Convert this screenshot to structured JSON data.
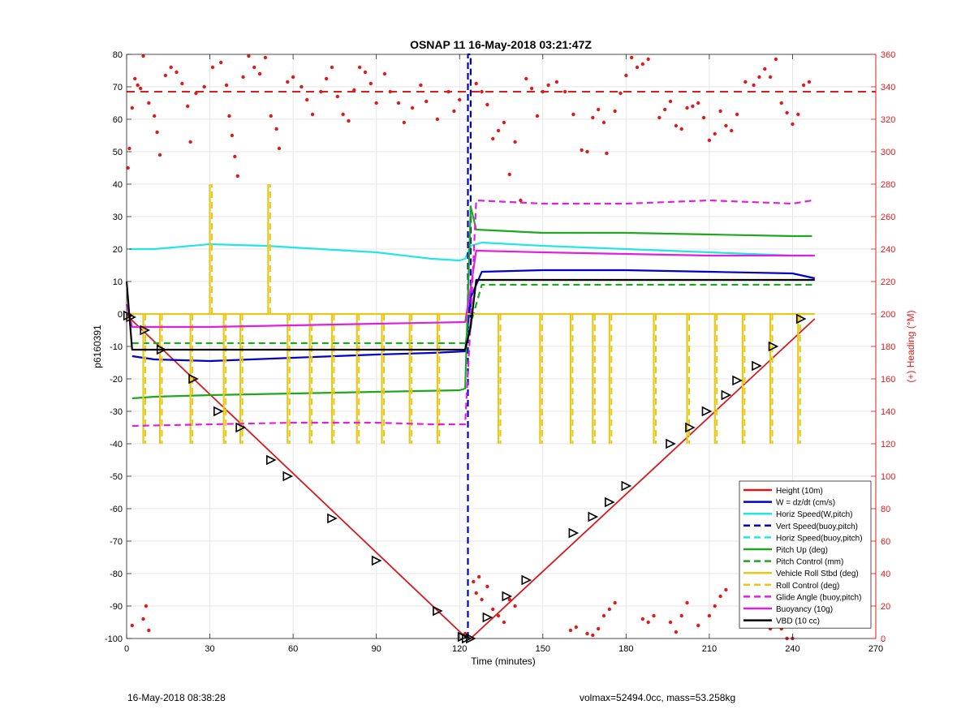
{
  "chart_data": {
    "type": "line",
    "title": "OSNAP 11 16-May-2018 03:21:47Z",
    "xlabel": "Time (minutes)",
    "ylabel": "p6160391",
    "y2label": "(+) Heading (°M)",
    "xlim": [
      0,
      270
    ],
    "ylim": [
      -100,
      80
    ],
    "y2lim": [
      0,
      360
    ],
    "xticks": [
      0,
      30,
      60,
      90,
      120,
      150,
      180,
      210,
      240,
      270
    ],
    "yticks": [
      -100,
      -90,
      -80,
      -70,
      -60,
      -50,
      -40,
      -30,
      -20,
      -10,
      0,
      10,
      20,
      30,
      40,
      50,
      60,
      70,
      80
    ],
    "y2ticks": [
      0,
      20,
      40,
      60,
      80,
      100,
      120,
      140,
      160,
      180,
      200,
      220,
      240,
      260,
      280,
      300,
      320,
      340,
      360
    ],
    "grid": true,
    "legend_position": "bottom-right",
    "colors": {
      "red": "#d7191c",
      "blue": "#0000cc",
      "cyan": "#22e5e5",
      "green": "#1fa81f",
      "yellow": "#e5c81a",
      "magenta": "#e020e0",
      "black": "#000000",
      "heading": "#e01b1b"
    },
    "legend": [
      {
        "label": "Height (10m)",
        "color": "#d7191c",
        "dash": false
      },
      {
        "label": "W = dz/dt (cm/s)",
        "color": "#0000cc",
        "dash": false
      },
      {
        "label": "Horiz Speed(W,pitch)",
        "color": "#22e5e5",
        "dash": false
      },
      {
        "label": "Vert Speed(buoy,pitch)",
        "color": "#0000cc",
        "dash": true
      },
      {
        "label": "Horiz Speed(buoy,pitch)",
        "color": "#22e5e5",
        "dash": true
      },
      {
        "label": "Pitch Up (deg)",
        "color": "#1fa81f",
        "dash": false
      },
      {
        "label": "Pitch Control (mm)",
        "color": "#1fa81f",
        "dash": true
      },
      {
        "label": "Vehicle Roll Stbd (deg)",
        "color": "#e5c81a",
        "dash": false
      },
      {
        "label": "Roll Control (deg)",
        "color": "#e5c81a",
        "dash": true
      },
      {
        "label": "Glide Angle (buoy,pitch)",
        "color": "#e020e0",
        "dash": true
      },
      {
        "label": "Buoyancy (10g)",
        "color": "#e020e0",
        "dash": false
      },
      {
        "label": "VBD (10 cc)",
        "color": "#000000",
        "dash": false
      }
    ],
    "series": [
      {
        "name": "Height (10m)",
        "x": [
          0,
          2,
          122,
          124,
          248
        ],
        "y": [
          0,
          -2,
          -99.5,
          -100,
          -1.5
        ]
      },
      {
        "name": "W = dz/dt (cm/s)",
        "x": [
          2,
          10,
          30,
          60,
          90,
          110,
          122,
          124,
          128,
          150,
          180,
          210,
          240,
          248
        ],
        "y": [
          -13,
          -14,
          -14.5,
          -13.5,
          -12.5,
          -12,
          -11.5,
          5,
          13,
          13.5,
          13.5,
          13,
          12.5,
          11
        ]
      },
      {
        "name": "Horiz Speed(W,pitch)",
        "x": [
          1,
          10,
          30,
          50,
          70,
          90,
          110,
          120,
          122,
          124,
          128,
          150,
          180,
          210,
          240,
          247
        ],
        "y": [
          20,
          20,
          21.5,
          21,
          20,
          19,
          17,
          16.5,
          17,
          21,
          22,
          21,
          20,
          19,
          18,
          18
        ]
      },
      {
        "name": "Vert Speed(buoy,pitch)",
        "x": [
          123,
          123,
          124,
          124
        ],
        "y": [
          -100,
          80,
          80,
          -4
        ]
      },
      {
        "name": "Pitch Up (deg)",
        "x": [
          2,
          10,
          30,
          60,
          90,
          120,
          122,
          124,
          126,
          150,
          180,
          210,
          240,
          247
        ],
        "y": [
          -26,
          -25.5,
          -25,
          -24.5,
          -24,
          -23.5,
          -23,
          33,
          26,
          25,
          25,
          24.5,
          24,
          24
        ]
      },
      {
        "name": "Pitch Control (mm)",
        "x": [
          2,
          122,
          122,
          124,
          128,
          248
        ],
        "y": [
          -9,
          -9,
          -9,
          -3,
          9,
          9
        ]
      },
      {
        "name": "Vehicle Roll Stbd (deg)",
        "x": [
          1,
          122,
          124,
          248
        ],
        "y": [
          0,
          0,
          0,
          0
        ],
        "spikes_x": [
          6,
          12,
          23,
          30,
          35,
          41,
          51,
          58,
          66,
          74,
          83,
          92,
          102,
          112,
          134,
          149,
          160,
          168,
          174,
          190,
          202,
          212,
          222,
          232,
          242
        ],
        "spikes_y": [
          -40,
          -40,
          -40,
          40,
          -40,
          -40,
          40,
          -40,
          -40,
          -40,
          -40,
          -40,
          -40,
          -40,
          -40,
          -40,
          -40,
          -40,
          -40,
          -40,
          -40,
          -40,
          -40,
          -40,
          -40
        ]
      },
      {
        "name": "Glide Angle (buoy,pitch)",
        "x": [
          2,
          30,
          60,
          90,
          110,
          122,
          124,
          126,
          150,
          180,
          210,
          240,
          247
        ],
        "y": [
          -34.5,
          -34,
          -33.5,
          -33.5,
          -34,
          -34,
          -2,
          35,
          34,
          34,
          35,
          34,
          35
        ]
      },
      {
        "name": "Buoyancy (10g)",
        "x": [
          0,
          2,
          30,
          60,
          90,
          122,
          124,
          126,
          150,
          180,
          210,
          248
        ],
        "y": [
          3,
          -4,
          -4,
          -3.5,
          -3,
          -2.5,
          8,
          19.5,
          19,
          18.5,
          18,
          18
        ]
      },
      {
        "name": "VBD (10 cc)",
        "x": [
          0,
          2,
          122,
          124,
          126,
          248
        ],
        "y": [
          10,
          -11,
          -11,
          -4,
          10.5,
          10.5
        ]
      },
      {
        "name": "Heading",
        "axis": "y2",
        "mean": 337,
        "points": [
          [
            0.5,
            290
          ],
          [
            1,
            302
          ],
          [
            2,
            327
          ],
          [
            3,
            345
          ],
          [
            4,
            341
          ],
          [
            5,
            339
          ],
          [
            6,
            359
          ],
          [
            8,
            330
          ],
          [
            10,
            322
          ],
          [
            11,
            312
          ],
          [
            12,
            298
          ],
          [
            14,
            347
          ],
          [
            16,
            352
          ],
          [
            18,
            349
          ],
          [
            20,
            342
          ],
          [
            22,
            328
          ],
          [
            23,
            306
          ],
          [
            25,
            336
          ],
          [
            28,
            340
          ],
          [
            31,
            352
          ],
          [
            34,
            355
          ],
          [
            36,
            341
          ],
          [
            37,
            322
          ],
          [
            38,
            310
          ],
          [
            39,
            297
          ],
          [
            40,
            285
          ],
          [
            42,
            346
          ],
          [
            44,
            359
          ],
          [
            46,
            352
          ],
          [
            48,
            348
          ],
          [
            50,
            358
          ],
          [
            52,
            322
          ],
          [
            54,
            314
          ],
          [
            55,
            302
          ],
          [
            58,
            343
          ],
          [
            60,
            346
          ],
          [
            63,
            340
          ],
          [
            65,
            332
          ],
          [
            67,
            323
          ],
          [
            70,
            337
          ],
          [
            72,
            345
          ],
          [
            74,
            352
          ],
          [
            76,
            334
          ],
          [
            78,
            323
          ],
          [
            80,
            319
          ],
          [
            82,
            338
          ],
          [
            84,
            352
          ],
          [
            86,
            349
          ],
          [
            88,
            342
          ],
          [
            90,
            330
          ],
          [
            93,
            348
          ],
          [
            95,
            337
          ],
          [
            98,
            330
          ],
          [
            100,
            318
          ],
          [
            103,
            327
          ],
          [
            106,
            341
          ],
          [
            108,
            331
          ],
          [
            112,
            320
          ],
          [
            116,
            337
          ],
          [
            118,
            325
          ],
          [
            120,
            332
          ],
          [
            126,
            342
          ],
          [
            128,
            337
          ],
          [
            130,
            329
          ],
          [
            132,
            308
          ],
          [
            134,
            313
          ],
          [
            136,
            318
          ],
          [
            138,
            286
          ],
          [
            140,
            306
          ],
          [
            142,
            270
          ],
          [
            144,
            345
          ],
          [
            146,
            339
          ],
          [
            148,
            322
          ],
          [
            150,
            337
          ],
          [
            152,
            341
          ],
          [
            155,
            343
          ],
          [
            158,
            337
          ],
          [
            161,
            323
          ],
          [
            164,
            301
          ],
          [
            166,
            300
          ],
          [
            168,
            321
          ],
          [
            170,
            326
          ],
          [
            172,
            318
          ],
          [
            173,
            299
          ],
          [
            176,
            325
          ],
          [
            178,
            336
          ],
          [
            180,
            347
          ],
          [
            182,
            358
          ],
          [
            184,
            352
          ],
          [
            186,
            354
          ],
          [
            188,
            357
          ],
          [
            192,
            321
          ],
          [
            194,
            326
          ],
          [
            196,
            331
          ],
          [
            198,
            316
          ],
          [
            200,
            314
          ],
          [
            202,
            327
          ],
          [
            204,
            328
          ],
          [
            206,
            330
          ],
          [
            208,
            321
          ],
          [
            210,
            307
          ],
          [
            212,
            311
          ],
          [
            214,
            325
          ],
          [
            216,
            316
          ],
          [
            218,
            313
          ],
          [
            220,
            323
          ],
          [
            223,
            343
          ],
          [
            226,
            341
          ],
          [
            228,
            346
          ],
          [
            230,
            351
          ],
          [
            232,
            346
          ],
          [
            234,
            357
          ],
          [
            236,
            330
          ],
          [
            238,
            324
          ],
          [
            240,
            317
          ],
          [
            242,
            323
          ],
          [
            244,
            341
          ],
          [
            246,
            343
          ],
          [
            2,
            8
          ],
          [
            6,
            12
          ],
          [
            7,
            20
          ],
          [
            8,
            5
          ],
          [
            122,
            3
          ],
          [
            125,
            35
          ],
          [
            126,
            28
          ],
          [
            127,
            38
          ],
          [
            128,
            24
          ],
          [
            130,
            32
          ],
          [
            132,
            18
          ],
          [
            134,
            14
          ],
          [
            136,
            10
          ],
          [
            138,
            24
          ],
          [
            140,
            20
          ],
          [
            160,
            5
          ],
          [
            162,
            7
          ],
          [
            166,
            3
          ],
          [
            168,
            2
          ],
          [
            170,
            6
          ],
          [
            172,
            14
          ],
          [
            174,
            18
          ],
          [
            176,
            22
          ],
          [
            186,
            12
          ],
          [
            188,
            10
          ],
          [
            190,
            14
          ],
          [
            196,
            10
          ],
          [
            198,
            4
          ],
          [
            200,
            14
          ],
          [
            202,
            22
          ],
          [
            206,
            8
          ],
          [
            210,
            14
          ],
          [
            212,
            20
          ],
          [
            214,
            26
          ],
          [
            216,
            30
          ],
          [
            222,
            14
          ],
          [
            228,
            14
          ],
          [
            232,
            6
          ],
          [
            234,
            12
          ],
          [
            236,
            6
          ],
          [
            238,
            0
          ],
          [
            240,
            0
          ]
        ]
      }
    ],
    "markers": {
      "x": [
        0.5,
        1.5,
        6.5,
        12.5,
        24,
        33,
        41,
        52,
        58,
        74,
        90,
        112,
        121,
        122.5,
        124,
        130,
        137,
        144,
        161,
        168,
        174,
        180,
        196,
        203,
        209,
        216,
        220,
        227,
        233,
        243
      ],
      "y": [
        -0.5,
        -1,
        -5,
        -11,
        -20,
        -30,
        -35,
        -45,
        -50,
        -63,
        -76,
        -91.5,
        -99.5,
        -100,
        -100,
        -93.5,
        -87,
        -82,
        -67.5,
        -62.5,
        -58,
        -53,
        -40,
        -35,
        -30,
        -25,
        -20.5,
        -16,
        -10,
        -1.5
      ]
    }
  },
  "footer": {
    "left": "16-May-2018 08:38:28",
    "right": "volmax=52494.0cc, mass=53.258kg"
  }
}
